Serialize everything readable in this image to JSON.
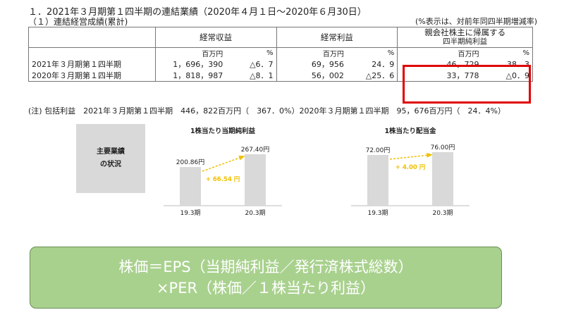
{
  "header": {
    "title": "１．2021年３月期第１四半期の連結業績（2020年４月１日～2020年６月30日）",
    "subtitle": "（１）連結経営成績(累計)",
    "unit_note": "(%表示は、対前年同四半期増減率)"
  },
  "table": {
    "columns": [
      "経常収益",
      "経常利益",
      "親会社株主に帰属する",
      "四半期純利益"
    ],
    "unit_million": "百万円",
    "unit_pct": "%",
    "rows": [
      {
        "label": "2021年３月期第１四半期",
        "rev": "1，696，390",
        "rev_pct": "△6．7",
        "ord": "69，956",
        "ord_pct": "24．9",
        "net": "46，729",
        "net_pct": "38．3"
      },
      {
        "label": "2020年３月期第１四半期",
        "rev": "1，818，987",
        "rev_pct": "△8．1",
        "ord": "56，002",
        "ord_pct": "△25．6",
        "net": "33，778",
        "net_pct": "△0．9"
      }
    ]
  },
  "note": "(注) 包括利益　2021年３月期第１四半期　446，822百万円（　367．0%）2020年３月期第１四半期　95，676百万円（　24．4%）",
  "summary_box": {
    "line1": "主要業績",
    "line2": "の状況"
  },
  "charts": [
    {
      "title": "1株当たり当期純利益",
      "categories": [
        "19.3期",
        "20.3期"
      ],
      "values": [
        200.86,
        267.4
      ],
      "value_labels": [
        "200.86円",
        "267.40円"
      ],
      "delta": "+ 66.54 円",
      "ylim": [
        0,
        300
      ]
    },
    {
      "title": "1株当たり配当金",
      "categories": [
        "19.3期",
        "20.3期"
      ],
      "values": [
        72.0,
        76.0
      ],
      "value_labels": [
        "72.00円",
        "76.00円"
      ],
      "delta": "+ 4.00 円",
      "ylim": [
        0,
        82
      ]
    }
  ],
  "formula": {
    "line1": "株価＝EPS（当期純利益／発行済株式総数）",
    "line2": "×PER（株価／１株当たり利益）"
  },
  "colors": {
    "bar": "#d9d9d9",
    "arrow": "#f0c000",
    "highlight": "#e00000",
    "formula_bg": "#a9d18e"
  }
}
